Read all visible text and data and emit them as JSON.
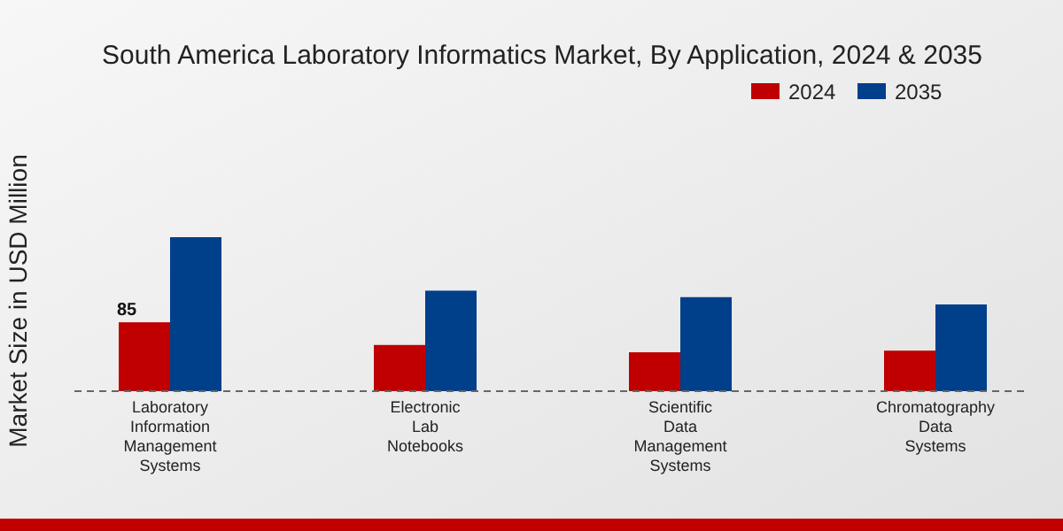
{
  "chart_data": {
    "type": "bar",
    "title": "South America Laboratory Informatics Market, By Application, 2024 & 2035",
    "ylabel": "Market Size in USD Million",
    "categories": [
      "Laboratory Information Management Systems",
      "Electronic Lab Notebooks",
      "Scientific Data Management Systems",
      "Chromatography Data Systems"
    ],
    "series": [
      {
        "name": "2024",
        "color": "#c00000",
        "values": [
          85,
          57,
          48,
          50
        ],
        "value_labels": [
          "85",
          null,
          null,
          null
        ]
      },
      {
        "name": "2035",
        "color": "#003f8a",
        "values": [
          190,
          124,
          116,
          107
        ]
      }
    ],
    "legend": "top right"
  }
}
